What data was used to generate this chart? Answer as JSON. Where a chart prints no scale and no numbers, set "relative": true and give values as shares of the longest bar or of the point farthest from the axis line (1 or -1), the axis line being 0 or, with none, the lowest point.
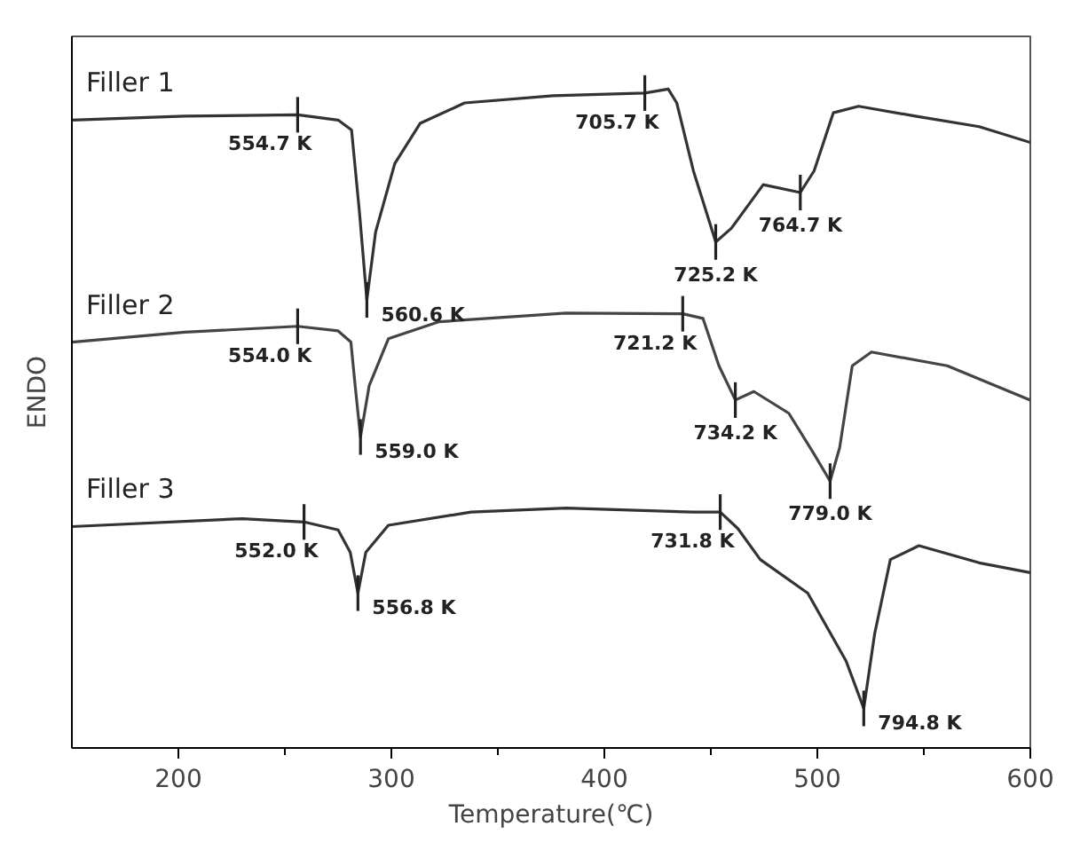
{
  "chart_data": {
    "type": "line",
    "relative": true,
    "xlabel": "Temperature(℃)",
    "ylabel": "ENDO",
    "xlim": [
      150,
      600
    ],
    "xticks": [
      200,
      {
        "value": 250,
        "label": null
      },
      300,
      {
        "value": 350,
        "label": null
      },
      400,
      {
        "value": 450,
        "label": null
      },
      500,
      {
        "value": 550,
        "label": null
      },
      600
    ],
    "grid": false,
    "marker": "none",
    "line_style": "solid",
    "series": [
      {
        "name": "Filler 1",
        "color": "#333333",
        "x": [
          150,
          203,
          256,
          275,
          281.3,
          285,
          288.5,
          292.6,
          301.6,
          313.5,
          334.4,
          376,
          419,
          430,
          434,
          441.8,
          452.3,
          459.7,
          474.6,
          492,
          498.5,
          507.5,
          519.4,
          546,
          576,
          600
        ],
        "values": [
          0.953,
          0.959,
          0.961,
          0.953,
          0.938,
          0.814,
          0.68,
          0.783,
          0.887,
          0.948,
          0.979,
          0.99,
          0.994,
          1,
          0.979,
          0.876,
          0.768,
          0.789,
          0.855,
          0.843,
          0.876,
          0.964,
          0.974,
          0.959,
          0.943,
          0.919
        ]
      },
      {
        "name": "Filler 2",
        "color": "#444444",
        "x": [
          150,
          203,
          256,
          275,
          281,
          283,
          285.5,
          289.6,
          298.6,
          322.5,
          382,
          436.8,
          446.3,
          453.8,
          461.5,
          470.2,
          486.6,
          498.5,
          506,
          510.5,
          516.4,
          525.4,
          561,
          600
        ],
        "values": [
          0.616,
          0.631,
          0.64,
          0.633,
          0.616,
          0.55,
          0.472,
          0.55,
          0.621,
          0.647,
          0.66,
          0.659,
          0.652,
          0.58,
          0.528,
          0.541,
          0.508,
          0.446,
          0.405,
          0.456,
          0.58,
          0.601,
          0.58,
          0.528
        ]
      },
      {
        "name": "Filler 3",
        "color": "#333333",
        "x": [
          150,
          230,
          259,
          275,
          280.7,
          284.3,
          288,
          298.6,
          337.4,
          382,
          441.8,
          454.4,
          462.7,
          473.2,
          495.5,
          513.5,
          521.8,
          526.9,
          534.3,
          547.7,
          576,
          600
        ],
        "values": [
          0.336,
          0.348,
          0.343,
          0.331,
          0.297,
          0.235,
          0.297,
          0.338,
          0.358,
          0.364,
          0.358,
          0.358,
          0.333,
          0.286,
          0.235,
          0.132,
          0.06,
          0.173,
          0.286,
          0.307,
          0.281,
          0.266
        ]
      }
    ],
    "annotations": [
      {
        "text": "554.7 K",
        "x": 256,
        "y": 0.961
      },
      {
        "text": "560.6 K",
        "x": 288.5,
        "y": 0.68
      },
      {
        "text": "705.7 K",
        "x": 419,
        "y": 0.994
      },
      {
        "text": "725.2 K",
        "x": 452.3,
        "y": 0.768
      },
      {
        "text": "764.7 K",
        "x": 492,
        "y": 0.843
      },
      {
        "text": "554.0 K",
        "x": 256,
        "y": 0.64
      },
      {
        "text": "559.0 K",
        "x": 285.5,
        "y": 0.472
      },
      {
        "text": "721.2 K",
        "x": 436.8,
        "y": 0.659
      },
      {
        "text": "734.2 K",
        "x": 461.5,
        "y": 0.528
      },
      {
        "text": "779.0 K",
        "x": 506,
        "y": 0.405
      },
      {
        "text": "552.0 K",
        "x": 259,
        "y": 0.343
      },
      {
        "text": "556.8 K",
        "x": 284.3,
        "y": 0.235
      },
      {
        "text": "731.8 K",
        "x": 454.4,
        "y": 0.358
      },
      {
        "text": "794.8 K",
        "x": 521.8,
        "y": 0.06
      }
    ]
  }
}
